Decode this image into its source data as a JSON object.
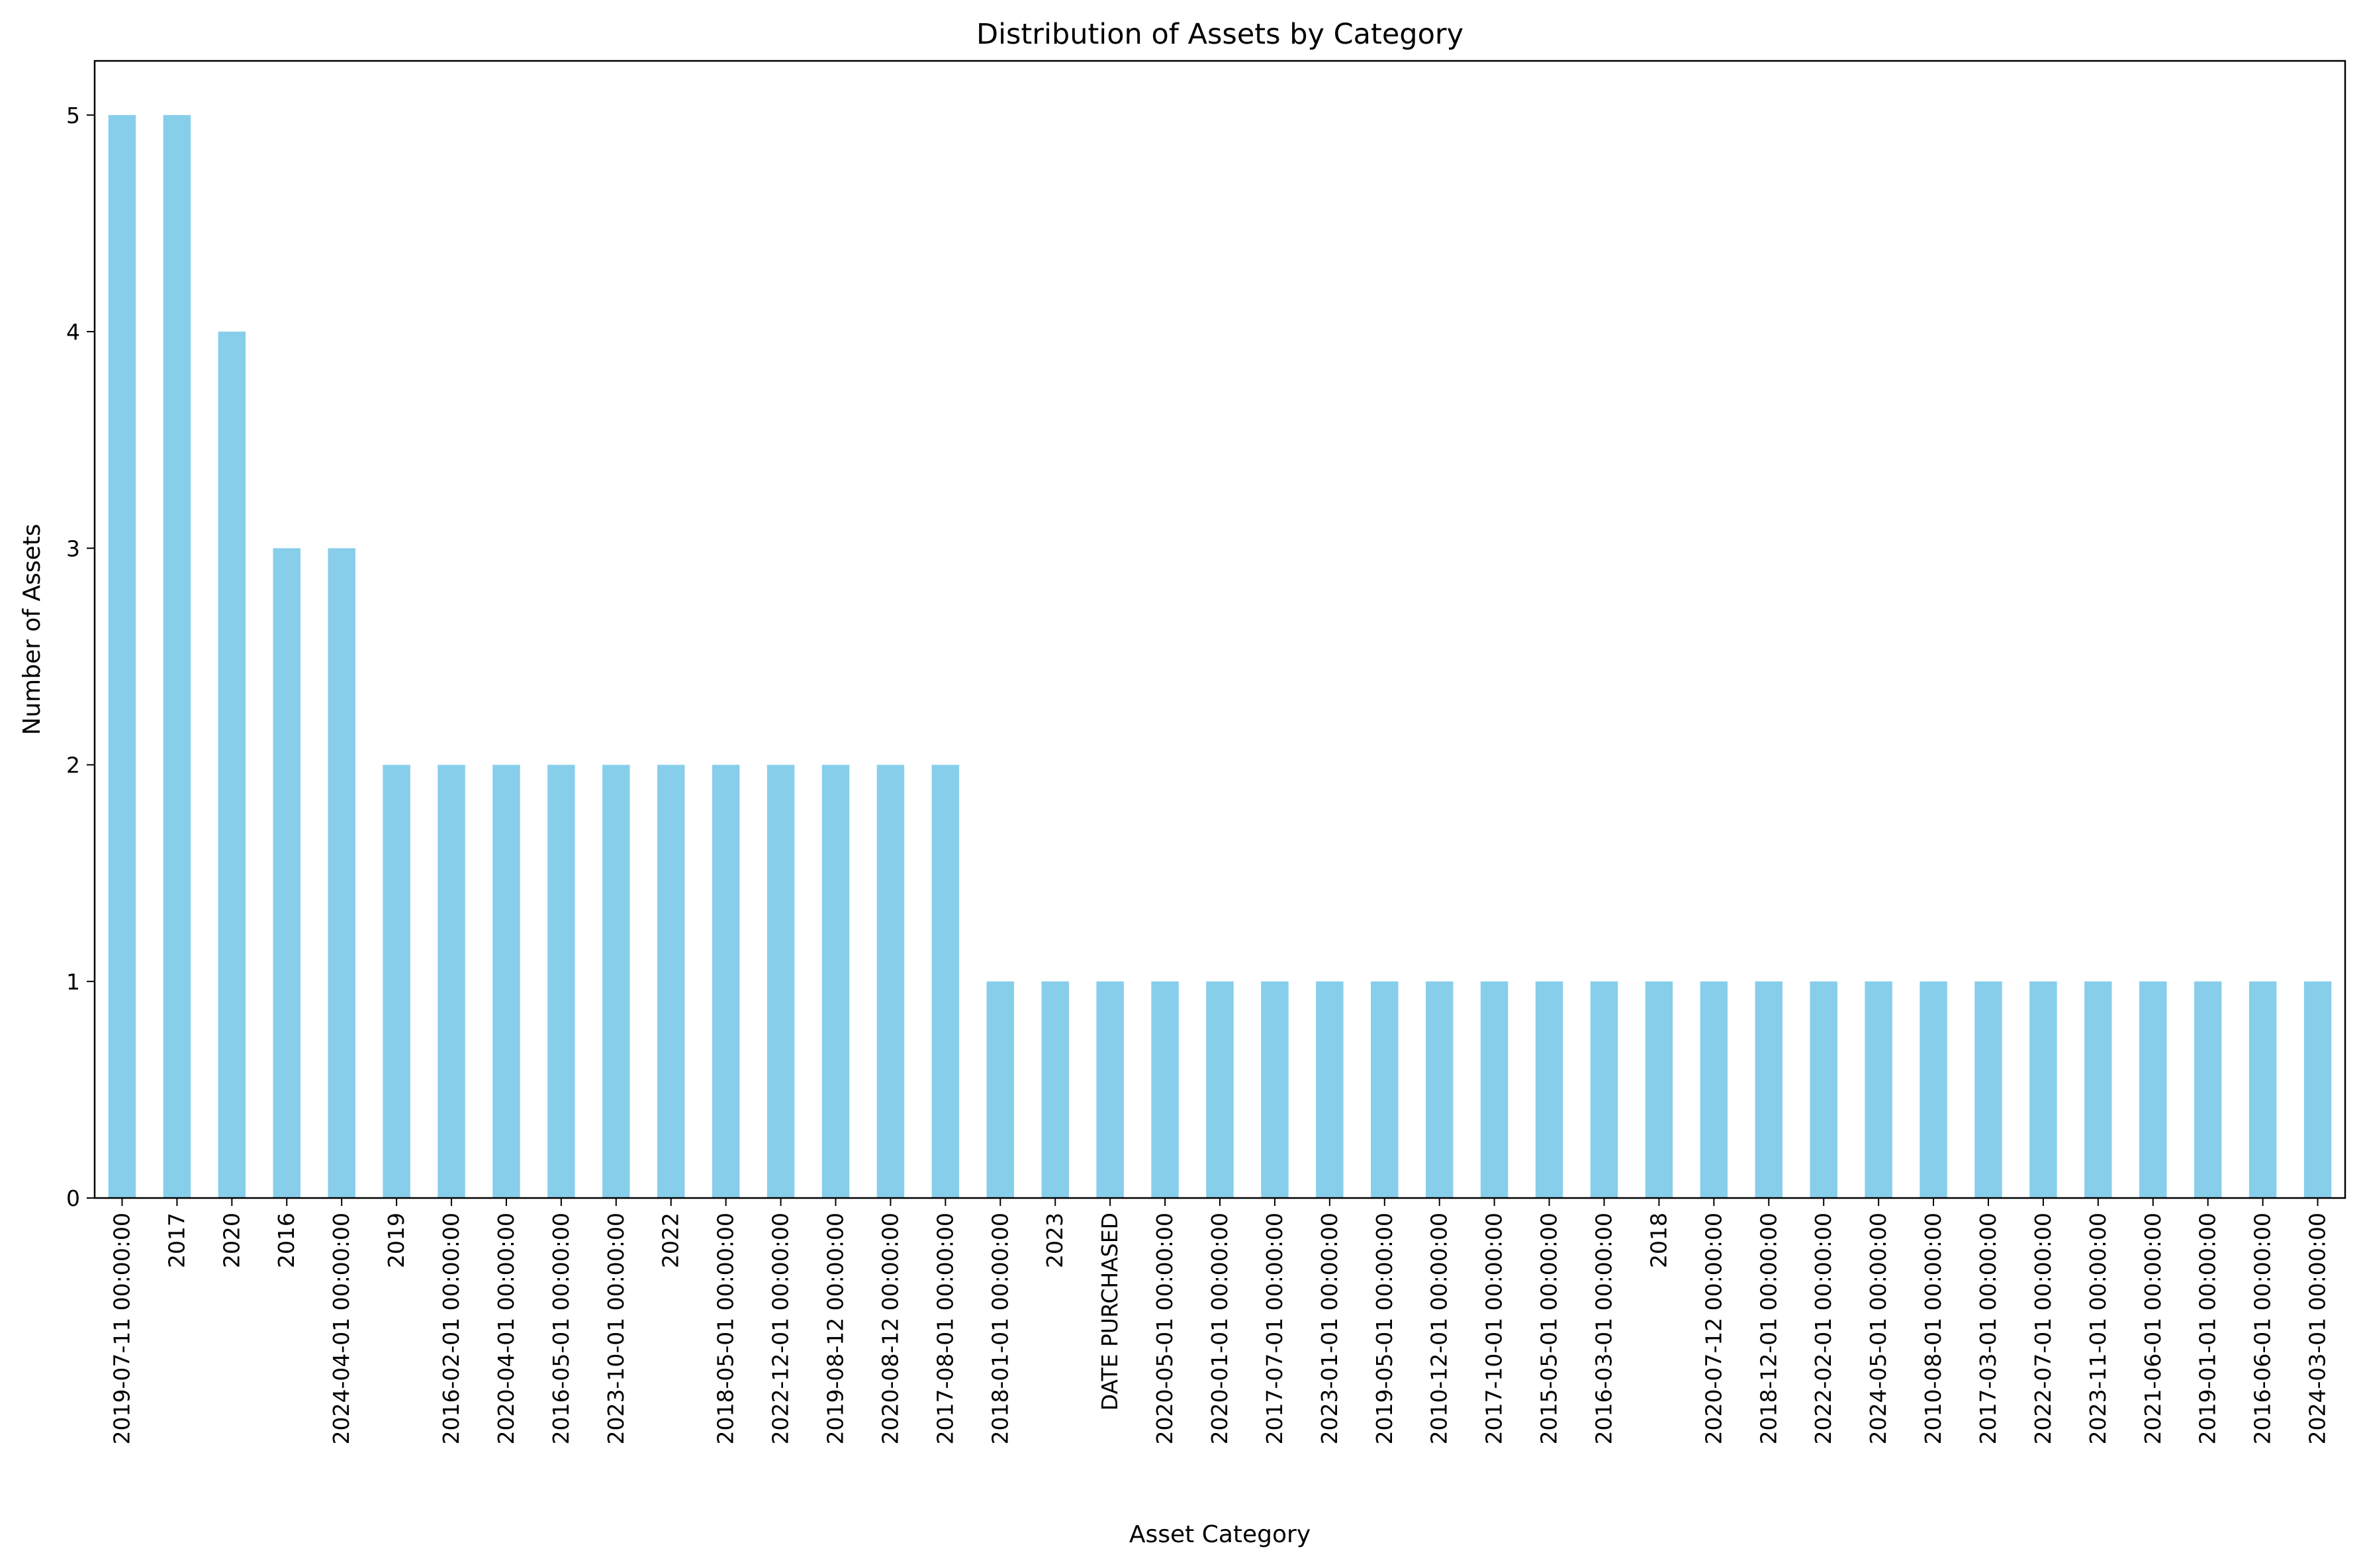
{
  "chart_data": {
    "type": "bar",
    "title": "Distribution of Assets by Category",
    "xlabel": "Asset Category",
    "ylabel": "Number of Assets",
    "ylim": [
      0,
      5.25
    ],
    "yticks": [
      0,
      1,
      2,
      3,
      4,
      5
    ],
    "grid": false,
    "legend": "none",
    "bar_color": "#87ceeb",
    "categories": [
      "2019-07-11 00:00:00",
      "2017",
      "2020",
      "2016",
      "2024-04-01 00:00:00",
      "2019",
      "2016-02-01 00:00:00",
      "2020-04-01 00:00:00",
      "2016-05-01 00:00:00",
      "2023-10-01 00:00:00",
      "2022",
      "2018-05-01 00:00:00",
      "2022-12-01 00:00:00",
      "2019-08-12 00:00:00",
      "2020-08-12 00:00:00",
      "2017-08-01 00:00:00",
      "2018-01-01 00:00:00",
      "2023",
      "DATE PURCHASED",
      "2020-05-01 00:00:00",
      "2020-01-01 00:00:00",
      "2017-07-01 00:00:00",
      "2023-01-01 00:00:00",
      "2019-05-01 00:00:00",
      "2010-12-01 00:00:00",
      "2017-10-01 00:00:00",
      "2015-05-01 00:00:00",
      "2016-03-01 00:00:00",
      "2018",
      "2020-07-12 00:00:00",
      "2018-12-01 00:00:00",
      "2022-02-01 00:00:00",
      "2024-05-01 00:00:00",
      "2010-08-01 00:00:00",
      "2017-03-01 00:00:00",
      "2022-07-01 00:00:00",
      "2023-11-01 00:00:00",
      "2021-06-01 00:00:00",
      "2019-01-01 00:00:00",
      "2016-06-01 00:00:00",
      "2024-03-01 00:00:00"
    ],
    "values": [
      5,
      5,
      4,
      3,
      3,
      2,
      2,
      2,
      2,
      2,
      2,
      2,
      2,
      2,
      2,
      2,
      1,
      1,
      1,
      1,
      1,
      1,
      1,
      1,
      1,
      1,
      1,
      1,
      1,
      1,
      1,
      1,
      1,
      1,
      1,
      1,
      1,
      1,
      1,
      1,
      1
    ]
  }
}
